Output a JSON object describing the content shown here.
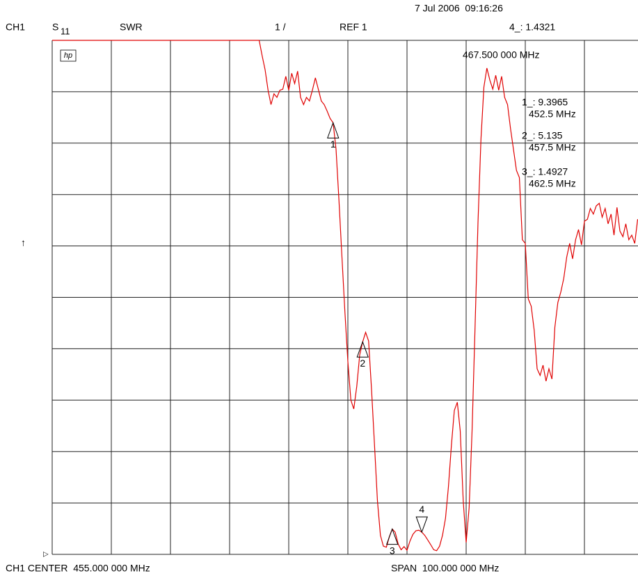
{
  "header": {
    "timestamp": "7 Jul 2006  09:16:26",
    "channel": "CH1",
    "parameter": "S",
    "parameter_sub": "11",
    "format": "SWR",
    "scale": "1 /",
    "reference": "REF 1",
    "logo": "hp",
    "arrow": "↑",
    "ref_marker": "▷"
  },
  "footer": {
    "center": "CH1 CENTER  455.000 000 MHz",
    "span": "SPAN  100.000 000 MHz"
  },
  "chart_data": {
    "type": "line",
    "color": "#e00000",
    "grid": true,
    "xlim": [
      405,
      505
    ],
    "ylim": [
      1,
      11
    ],
    "xticks": [
      405,
      415,
      425,
      435,
      445,
      455,
      465,
      475,
      485,
      495,
      505
    ],
    "yticks": [
      1,
      2,
      3,
      4,
      5,
      6,
      7,
      8,
      9,
      10,
      11
    ],
    "x": [
      405,
      440,
      440.5,
      441,
      441.5,
      442,
      442.5,
      443,
      443.5,
      444,
      444.5,
      445,
      445.5,
      446,
      446.5,
      447,
      447.5,
      448,
      448.5,
      449,
      449.5,
      450,
      450.5,
      451,
      451.5,
      452,
      452.5,
      453,
      453.5,
      454,
      454.5,
      455,
      455.5,
      456,
      456.5,
      457,
      457.5,
      458,
      458.5,
      459,
      459.5,
      460,
      460.5,
      461,
      461.5,
      462,
      462.5,
      463,
      463.5,
      464,
      464.5,
      465,
      465.5,
      466,
      466.5,
      467,
      467.5,
      468,
      468.5,
      469,
      469.5,
      470,
      470.5,
      471,
      471.5,
      472,
      472.5,
      473,
      473.5,
      474,
      474.5,
      475,
      475.5,
      476,
      476.5,
      477,
      477.5,
      478,
      478.5,
      479,
      479.5,
      480,
      480.5,
      481,
      481.5,
      482,
      482.5,
      483,
      483.5,
      484,
      484.5,
      485,
      485.5,
      486,
      486.5,
      487,
      487.5,
      488,
      488.5,
      489,
      489.5,
      490,
      490.5,
      491,
      491.5,
      492,
      492.5,
      493,
      493.5,
      494,
      494.5,
      495,
      495.5,
      496,
      496.5,
      497,
      497.5,
      498,
      498.5,
      499,
      499.5,
      500,
      500.5,
      501,
      501.5,
      502,
      502.5,
      503,
      503.5,
      504
    ],
    "values": [
      11,
      11,
      10.7,
      10.43,
      10.03,
      9.75,
      9.96,
      9.89,
      10.03,
      10.05,
      10.3,
      10.03,
      10.36,
      10.16,
      10.4,
      9.89,
      9.75,
      9.89,
      9.82,
      10.03,
      10.27,
      10.05,
      9.82,
      9.75,
      9.62,
      9.48,
      9.3965,
      8.88,
      7.86,
      6.78,
      5.7,
      4.75,
      4.0,
      3.83,
      4.27,
      4.88,
      5.135,
      5.32,
      5.15,
      4.21,
      3.12,
      2.04,
      1.37,
      1.16,
      1.14,
      1.34,
      1.4927,
      1.43,
      1.2,
      1.09,
      1.15,
      1.08,
      1.26,
      1.39,
      1.46,
      1.47,
      1.4321,
      1.37,
      1.28,
      1.19,
      1.09,
      1.07,
      1.16,
      1.37,
      1.7,
      2.31,
      3.12,
      3.8,
      3.96,
      3.4,
      2.04,
      1.23,
      1.91,
      3.4,
      5.42,
      7.45,
      9.08,
      10.09,
      10.46,
      10.23,
      10.05,
      10.32,
      10.03,
      10.3,
      9.89,
      9.75,
      9.28,
      8.88,
      8.47,
      8.33,
      7.12,
      7.05,
      5.97,
      5.83,
      5.36,
      4.61,
      4.48,
      4.68,
      4.37,
      4.61,
      4.41,
      5.42,
      5.9,
      6.1,
      6.37,
      6.78,
      7.05,
      6.75,
      7.12,
      7.32,
      7.02,
      7.48,
      7.52,
      7.73,
      7.62,
      7.78,
      7.83,
      7.56,
      7.73,
      7.43,
      7.62,
      7.21,
      7.75,
      7.29,
      7.18,
      7.43,
      7.12,
      7.21,
      7.05,
      7.52
    ],
    "markers": [
      {
        "id": "1",
        "x": 452.5,
        "value": 9.3965,
        "readout": "1_: 9.3965",
        "x_label": "452.5 MHz"
      },
      {
        "id": "2",
        "x": 457.5,
        "value": 5.135,
        "readout": "2_: 5.135",
        "x_label": "457.5 MHz"
      },
      {
        "id": "3",
        "x": 462.5,
        "value": 1.4927,
        "readout": "3_: 1.4927",
        "x_label": "462.5 MHz"
      },
      {
        "id": "4",
        "x": 467.5,
        "value": 1.4321,
        "readout": "4_: 1.4321",
        "x_label": "467.500 000 MHz"
      }
    ]
  }
}
